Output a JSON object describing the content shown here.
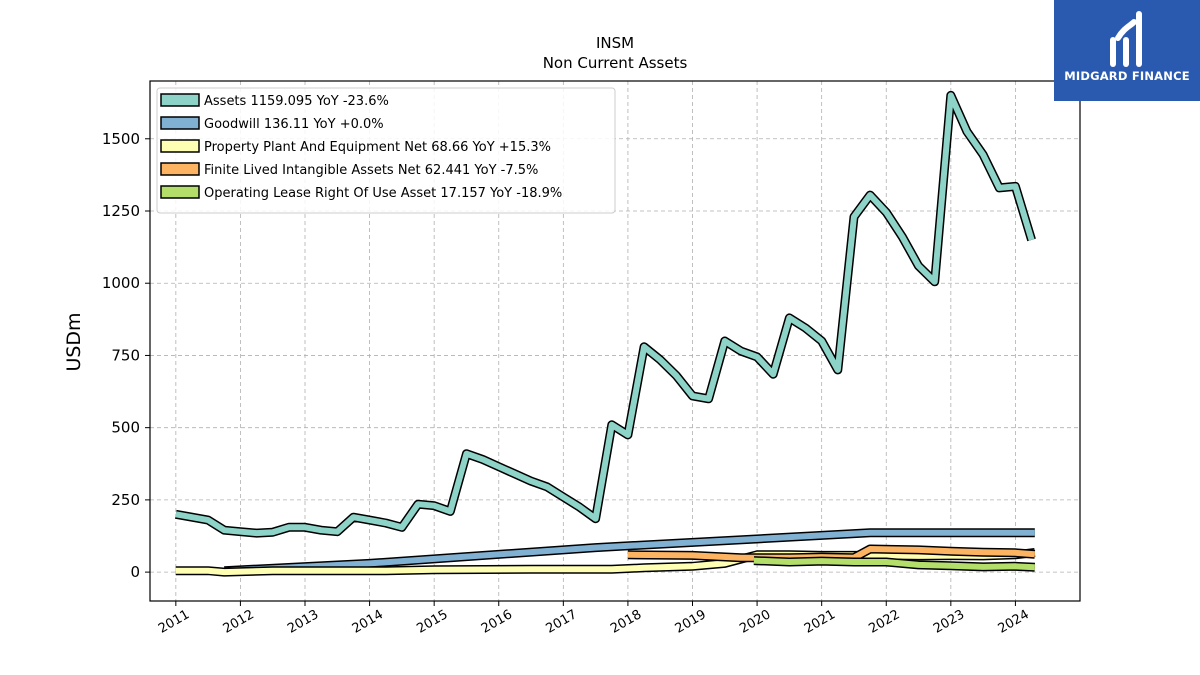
{
  "brand": {
    "name": "MIDGARD FINANCE",
    "bg_color": "#2a5ab0"
  },
  "chart_data": {
    "type": "line",
    "title": "INSM",
    "subtitle": "Non Current  Assets",
    "ylabel": "USDm",
    "xlabel": "",
    "ylim": [
      -100,
      1700
    ],
    "xlim": [
      2010.6,
      2025.0
    ],
    "yticks": [
      0,
      250,
      500,
      750,
      1000,
      1250,
      1500
    ],
    "xticks": [
      2011,
      2012,
      2013,
      2014,
      2015,
      2016,
      2017,
      2018,
      2019,
      2020,
      2021,
      2022,
      2023,
      2024
    ],
    "grid": true,
    "legend_position": "top-left",
    "series": [
      {
        "name": "Assets  1159.095 YoY -23.6%",
        "color": "#8dd3c7",
        "x": [
          2011.0,
          2011.25,
          2011.5,
          2011.75,
          2012.0,
          2012.25,
          2012.5,
          2012.75,
          2013.0,
          2013.25,
          2013.5,
          2013.75,
          2014.0,
          2014.25,
          2014.5,
          2014.75,
          2015.0,
          2015.25,
          2015.5,
          2015.75,
          2016.0,
          2016.25,
          2016.5,
          2016.75,
          2017.0,
          2017.25,
          2017.5,
          2017.75,
          2018.0,
          2018.25,
          2018.5,
          2018.75,
          2019.0,
          2019.25,
          2019.5,
          2019.75,
          2020.0,
          2020.25,
          2020.5,
          2020.75,
          2021.0,
          2021.25,
          2021.5,
          2021.75,
          2022.0,
          2022.25,
          2022.5,
          2022.75,
          2023.0,
          2023.25,
          2023.5,
          2023.75,
          2024.0,
          2024.25
        ],
        "values": [
          200,
          190,
          180,
          145,
          140,
          135,
          138,
          155,
          155,
          145,
          140,
          190,
          180,
          170,
          155,
          235,
          230,
          210,
          410,
          390,
          365,
          340,
          315,
          295,
          260,
          225,
          185,
          510,
          475,
          780,
          735,
          680,
          610,
          600,
          800,
          765,
          745,
          685,
          880,
          845,
          800,
          700,
          1230,
          1305,
          1245,
          1160,
          1060,
          1005,
          1650,
          1525,
          1445,
          1330,
          1335,
          1150
        ]
      },
      {
        "name": "Goodwill  136.11 YoY +0.0%",
        "color": "#80b1d3",
        "x": [
          2011.75,
          2014.0,
          2017.5,
          2021.75,
          2024.3
        ],
        "values": [
          5,
          30,
          85,
          136,
          136
        ]
      },
      {
        "name": "Property Plant And Equipment Net  68.66 YoY +15.3%",
        "color": "#ffffb3",
        "x": [
          2011.0,
          2011.5,
          2011.75,
          2012.5,
          2014.25,
          2015.0,
          2016.5,
          2017.75,
          2018.25,
          2019.0,
          2019.5,
          2019.75,
          2020.0,
          2020.5,
          2021.0,
          2021.5,
          2022.0,
          2022.5,
          2023.0,
          2023.5,
          2024.0,
          2024.3
        ],
        "values": [
          5,
          5,
          0,
          5,
          5,
          8,
          10,
          10,
          15,
          20,
          30,
          45,
          60,
          60,
          58,
          58,
          58,
          56,
          57,
          56,
          60,
          68
        ]
      },
      {
        "name": "Finite Lived Intangible Assets Net  62.441 YoY -7.5%",
        "color": "#fdb462",
        "x": [
          2018.0,
          2019.0,
          2019.75,
          2020.0,
          2020.5,
          2021.0,
          2021.5,
          2021.75,
          2022.5,
          2023.0,
          2023.5,
          2024.0,
          2024.3
        ],
        "values": [
          60,
          58,
          50,
          50,
          50,
          52,
          50,
          80,
          77,
          72,
          69,
          67,
          62
        ]
      },
      {
        "name": "Operating Lease Right Of Use Asset  17.157 YoY -18.9%",
        "color": "#b3de69",
        "x": [
          2019.95,
          2020.5,
          2021.0,
          2021.5,
          2022.0,
          2022.5,
          2023.0,
          2023.5,
          2024.0,
          2024.3
        ],
        "values": [
          40,
          35,
          38,
          35,
          35,
          25,
          22,
          18,
          20,
          17
        ]
      }
    ]
  }
}
